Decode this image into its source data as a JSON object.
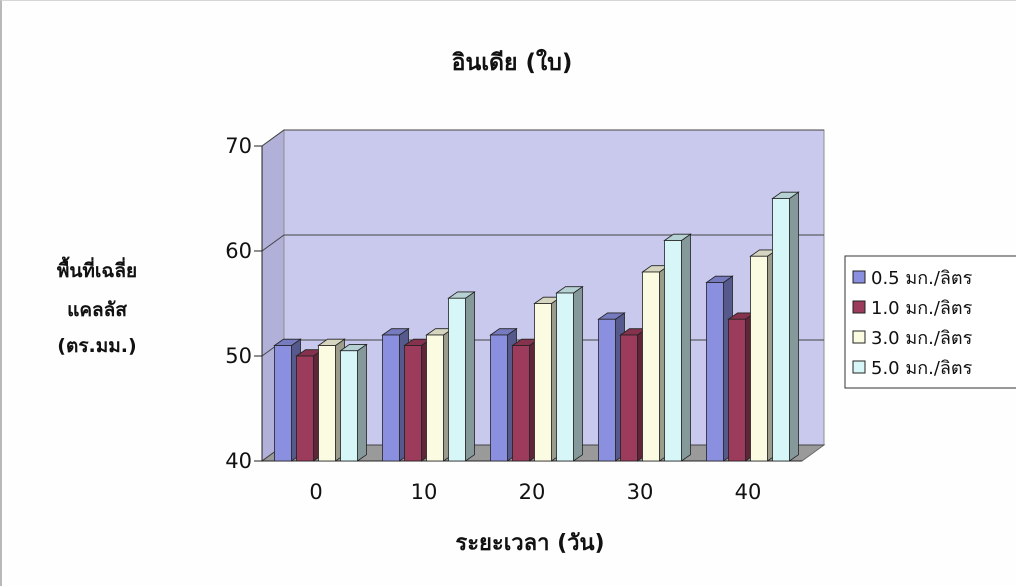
{
  "chart_data": {
    "type": "bar",
    "title": "อินเดีย (ใบ)",
    "xlabel": "ระยะเวลา (วัน)",
    "ylabel": [
      "พื้นที่เฉลี่ย",
      "แคลลัส",
      "(ตร.มม.)"
    ],
    "categories": [
      "0",
      "10",
      "20",
      "30",
      "40"
    ],
    "ylim": [
      40,
      70
    ],
    "yticks": [
      "40",
      "50",
      "60",
      "70"
    ],
    "grid": true,
    "legend_position": "right",
    "series": [
      {
        "name": "0.5 มก./ลิตร",
        "values": [
          51,
          52,
          52,
          53.5,
          57
        ],
        "color": "#8b8fe0"
      },
      {
        "name": "1.0 มก./ลิตร",
        "values": [
          50,
          51,
          51,
          52,
          53.5
        ],
        "color": "#9c3b5c"
      },
      {
        "name": "3.0 มก./ลิตร",
        "values": [
          51,
          52,
          55,
          58,
          59.5
        ],
        "color": "#fbfbe2"
      },
      {
        "name": "5.0 มก./ลิตร",
        "values": [
          50.5,
          55.5,
          56,
          61,
          65
        ],
        "color": "#d6f6f8"
      }
    ]
  }
}
